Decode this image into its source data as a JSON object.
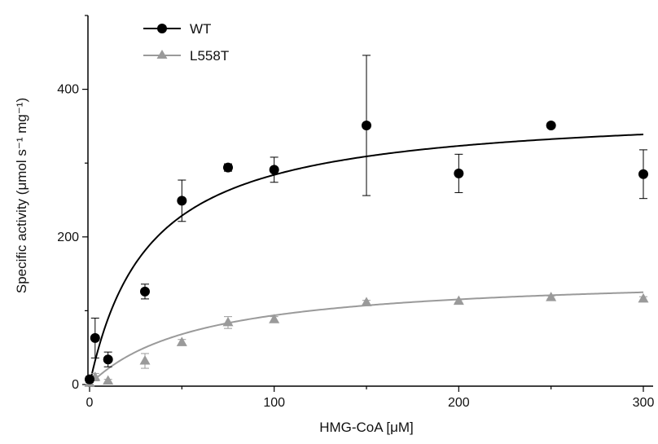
{
  "chart_data": {
    "type": "scatter",
    "xlabel": "HMG-CoA [μM]",
    "ylabel": "Specific activity (μmol s⁻¹ mg⁻¹)",
    "xlim": [
      0,
      300
    ],
    "ylim": [
      0,
      500
    ],
    "x_ticks": [
      0,
      100,
      200,
      300
    ],
    "y_ticks": [
      0,
      200,
      400
    ],
    "grid": false,
    "legend_position": "top-left",
    "series": [
      {
        "name": "WT",
        "color": "#000000",
        "marker": "circle",
        "x": [
          0,
          3,
          10,
          30,
          50,
          75,
          100,
          150,
          200,
          250,
          300
        ],
        "y": [
          7,
          63,
          34,
          126,
          249,
          294,
          291,
          351,
          286,
          351,
          285
        ],
        "err": [
          4,
          27,
          10,
          10,
          28,
          5,
          17,
          95,
          26,
          0,
          33
        ],
        "fit": {
          "model": "michaelis-menten",
          "vmax": 375,
          "km": 32
        }
      },
      {
        "name": "L558T",
        "color": "#9a9a9a",
        "marker": "triangle",
        "x": [
          0,
          3,
          10,
          30,
          50,
          75,
          100,
          150,
          200,
          250,
          300
        ],
        "y": [
          2,
          10,
          5,
          32,
          57,
          84,
          88,
          111,
          113,
          118,
          116
        ],
        "err": [
          2,
          5,
          2,
          10,
          4,
          8,
          4,
          3,
          2,
          2,
          3
        ],
        "fit": {
          "model": "michaelis-menten",
          "vmax": 150,
          "km": 60
        }
      }
    ]
  }
}
